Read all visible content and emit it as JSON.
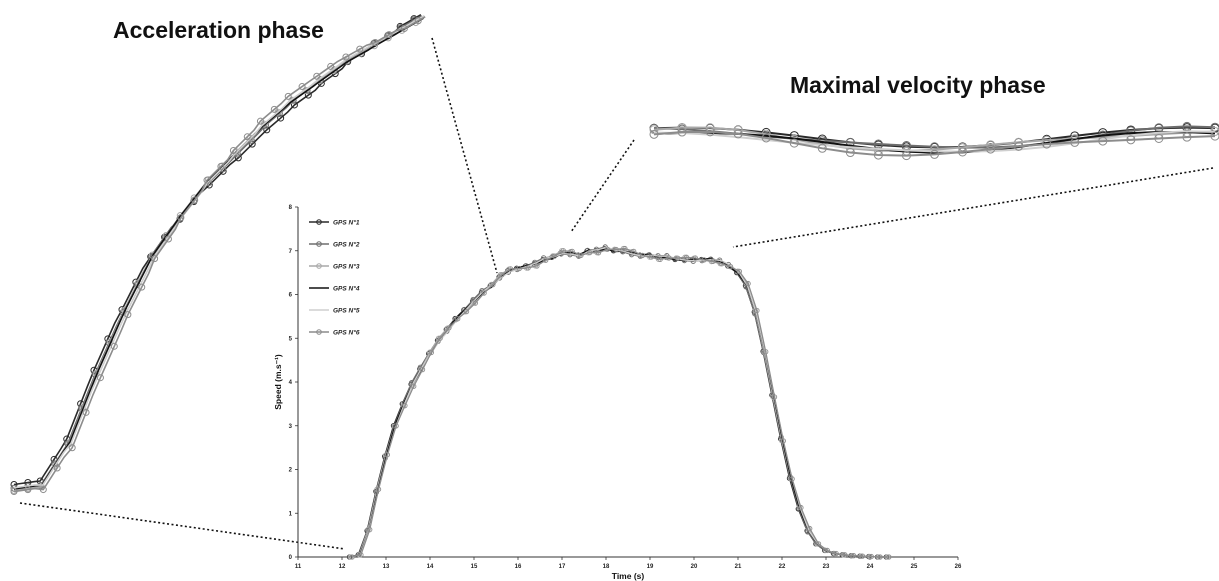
{
  "annotations": {
    "acceleration": "Acceleration phase",
    "maximal": "Maximal velocity phase"
  },
  "chart_data": {
    "type": "line",
    "xlabel": "Time (s)",
    "ylabel": "Speed (m.s⁻¹)",
    "xlim": [
      11,
      26
    ],
    "ylim": [
      0,
      8
    ],
    "xticks": [
      11,
      12,
      13,
      14,
      15,
      16,
      17,
      18,
      19,
      20,
      21,
      22,
      23,
      24,
      25,
      26
    ],
    "yticks": [
      0,
      1,
      2,
      3,
      4,
      5,
      6,
      7,
      8
    ],
    "grid": false,
    "legend": "top-left",
    "series": [
      {
        "name": "GPS N°1",
        "color": "#2a2a2a",
        "marker": true,
        "offset": 0.0
      },
      {
        "name": "GPS N°2",
        "color": "#6e6e6e",
        "marker": true,
        "offset": 0.04
      },
      {
        "name": "GPS N°3",
        "color": "#a8a8a8",
        "marker": true,
        "offset": -0.05
      },
      {
        "name": "GPS N°4",
        "color": "#111111",
        "marker": false,
        "offset": 0.02
      },
      {
        "name": "GPS N°5",
        "color": "#cfcfcf",
        "marker": false,
        "offset": -0.03
      },
      {
        "name": "GPS N°6",
        "color": "#8c8c8c",
        "marker": true,
        "offset": 0.05
      }
    ],
    "x": [
      12.2,
      12.4,
      12.6,
      12.8,
      13.0,
      13.2,
      13.4,
      13.6,
      13.8,
      14.0,
      14.2,
      14.4,
      14.6,
      14.8,
      15.0,
      15.2,
      15.4,
      15.6,
      15.8,
      16.0,
      16.2,
      16.4,
      16.6,
      16.8,
      17.0,
      17.2,
      17.4,
      17.6,
      17.8,
      18.0,
      18.2,
      18.4,
      18.6,
      18.8,
      19.0,
      19.2,
      19.4,
      19.6,
      19.8,
      20.0,
      20.2,
      20.4,
      20.6,
      20.8,
      21.0,
      21.2,
      21.4,
      21.6,
      21.8,
      22.0,
      22.2,
      22.4,
      22.6,
      22.8,
      23.0,
      23.2,
      23.4,
      23.6,
      23.8,
      24.0,
      24.2,
      24.4
    ],
    "y": [
      0.0,
      0.05,
      0.6,
      1.5,
      2.3,
      3.0,
      3.5,
      3.95,
      4.3,
      4.65,
      4.95,
      5.2,
      5.45,
      5.65,
      5.85,
      6.05,
      6.2,
      6.4,
      6.55,
      6.6,
      6.65,
      6.7,
      6.8,
      6.85,
      6.95,
      6.95,
      6.9,
      7.0,
      7.0,
      7.05,
      7.0,
      7.0,
      6.95,
      6.9,
      6.9,
      6.85,
      6.85,
      6.8,
      6.8,
      6.8,
      6.8,
      6.8,
      6.75,
      6.65,
      6.5,
      6.2,
      5.6,
      4.7,
      3.7,
      2.7,
      1.8,
      1.1,
      0.6,
      0.3,
      0.15,
      0.08,
      0.05,
      0.03,
      0.02,
      0.01,
      0.0,
      0.0
    ]
  }
}
